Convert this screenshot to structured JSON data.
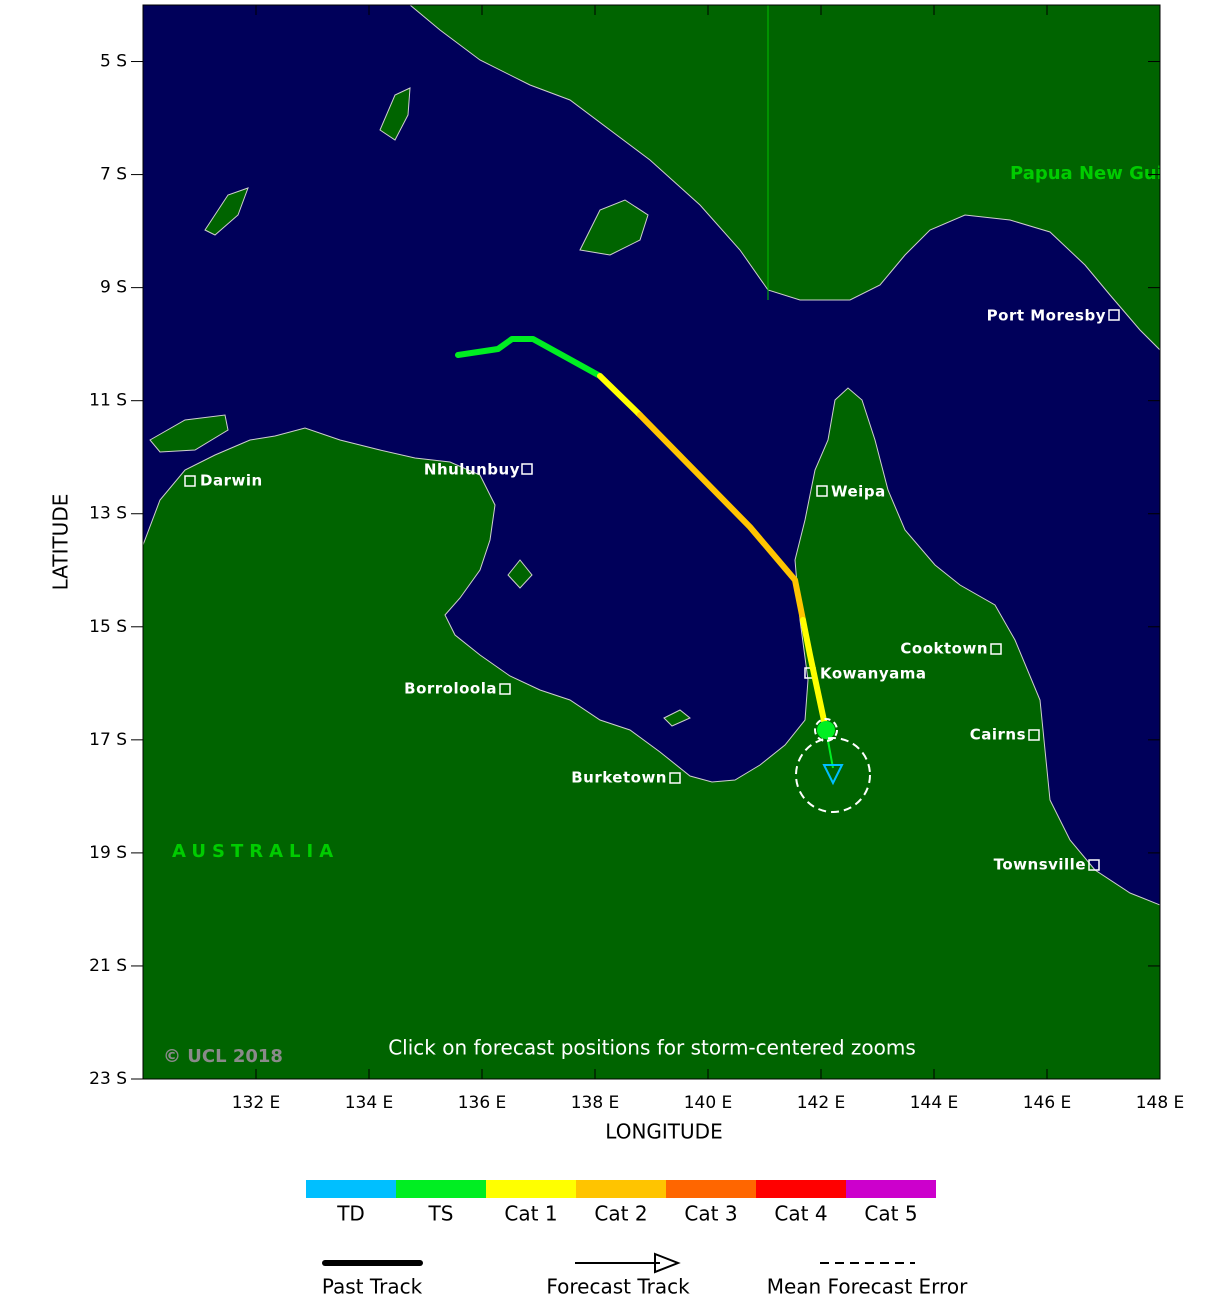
{
  "map": {
    "xlim": [
      130,
      148
    ],
    "ylim": [
      -23,
      -4
    ],
    "xticks": [
      {
        "value": 132,
        "label": "132 E"
      },
      {
        "value": 134,
        "label": "134 E"
      },
      {
        "value": 136,
        "label": "136 E"
      },
      {
        "value": 138,
        "label": "138 E"
      },
      {
        "value": 140,
        "label": "140 E"
      },
      {
        "value": 142,
        "label": "142 E"
      },
      {
        "value": 144,
        "label": "144 E"
      },
      {
        "value": 146,
        "label": "146 E"
      },
      {
        "value": 148,
        "label": "148 E"
      }
    ],
    "yticks": [
      {
        "value": -5,
        "label": "5 S"
      },
      {
        "value": -7,
        "label": "7 S"
      },
      {
        "value": -9,
        "label": "9 S"
      },
      {
        "value": -11,
        "label": "11 S"
      },
      {
        "value": -13,
        "label": "13 S"
      },
      {
        "value": -15,
        "label": "15 S"
      },
      {
        "value": -17,
        "label": "17 S"
      },
      {
        "value": -19,
        "label": "19 S"
      },
      {
        "value": -21,
        "label": "21 S"
      },
      {
        "value": -23,
        "label": "23 S"
      }
    ],
    "xlabel": "LONGITUDE",
    "ylabel": "LATITUDE",
    "region_labels": [
      "AUSTRALIA",
      "Papua New Guinea"
    ],
    "cities": [
      "Darwin",
      "Nhulunbuy",
      "Weipa",
      "Port Moresby",
      "Cooktown",
      "Kowanyama",
      "Cairns",
      "Borroloola",
      "Burketown",
      "Townsville"
    ],
    "note": "Click on forecast positions for storm-centered zooms",
    "copyright": "© UCL 2018"
  },
  "legend": {
    "categories": [
      {
        "name": "TD",
        "color": "#00bfff"
      },
      {
        "name": "TS",
        "color": "#00ee22"
      },
      {
        "name": "Cat 1",
        "color": "#ffff00"
      },
      {
        "name": "Cat 2",
        "color": "#ffc400"
      },
      {
        "name": "Cat 3",
        "color": "#ff6600"
      },
      {
        "name": "Cat 4",
        "color": "#ff0000"
      },
      {
        "name": "Cat 5",
        "color": "#cc00cc"
      }
    ],
    "track_keys": [
      "Past Track",
      "Forecast Track",
      "Mean Forecast Error"
    ]
  }
}
